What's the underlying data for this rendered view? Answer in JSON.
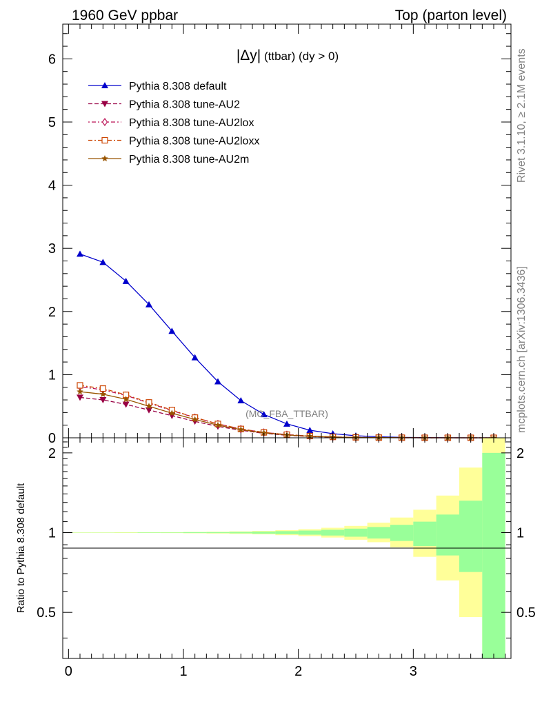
{
  "header": {
    "left": "1960 GeV ppbar",
    "right": "Top (parton level)"
  },
  "side_labels": {
    "rivet": "Rivet 3.1.10, ≥ 2.1M events",
    "mcplots": "mcplots.cern.ch [arXiv:1306.3436]"
  },
  "analysis_tag": "(MC_FBA_TTBAR)",
  "main_title": {
    "var": "|Δy|",
    "rest": " (ttbar) (dy > 0)"
  },
  "chart_data": [
    {
      "type": "line",
      "title": "|Δy| (ttbar) (dy > 0)",
      "xlim": [
        -0.05,
        3.85
      ],
      "ylim": [
        0,
        6.55
      ],
      "x": [
        0.1,
        0.3,
        0.5,
        0.7,
        0.9,
        1.1,
        1.3,
        1.5,
        1.7,
        1.9,
        2.1,
        2.3,
        2.5,
        2.7,
        2.9,
        3.1,
        3.3,
        3.5,
        3.7
      ],
      "yticks": [
        0,
        1,
        2,
        3,
        4,
        5,
        6
      ],
      "ytick_labels": [
        "0",
        "1",
        "2",
        "3",
        "4",
        "5",
        "6"
      ],
      "legend_position": "top-left",
      "series": [
        {
          "name": "Pythia 8.308 default",
          "color": "#0000cc",
          "marker": "triangle-up",
          "dash": "solid",
          "values": [
            2.91,
            2.78,
            2.48,
            2.11,
            1.69,
            1.27,
            0.89,
            0.59,
            0.37,
            0.22,
            0.12,
            0.065,
            0.033,
            0.016,
            0.007,
            0.003,
            0.0012,
            0.0005,
            0.0002
          ]
        },
        {
          "name": "Pythia 8.308 tune-AU2",
          "color": "#990044",
          "marker": "triangle-down",
          "dash": "dashed",
          "values": [
            0.64,
            0.6,
            0.53,
            0.44,
            0.35,
            0.26,
            0.18,
            0.12,
            0.07,
            0.04,
            0.02,
            0.011,
            0.005,
            0.0025,
            0.001,
            0.0005,
            0.0002,
            0.0001,
            4e-05
          ]
        },
        {
          "name": "Pythia 8.308 tune-AU2lox",
          "color": "#bb1155",
          "marker": "diamond-open",
          "dash": "dotdash",
          "values": [
            0.81,
            0.76,
            0.67,
            0.55,
            0.43,
            0.32,
            0.22,
            0.14,
            0.085,
            0.05,
            0.027,
            0.014,
            0.007,
            0.003,
            0.0013,
            0.0006,
            0.0003,
            0.0001,
            5e-05
          ]
        },
        {
          "name": "Pythia 8.308 tune-AU2loxx",
          "color": "#cc4400",
          "marker": "square-open",
          "dash": "dashdot",
          "values": [
            0.83,
            0.78,
            0.68,
            0.56,
            0.44,
            0.32,
            0.22,
            0.14,
            0.086,
            0.05,
            0.028,
            0.014,
            0.007,
            0.003,
            0.0014,
            0.0006,
            0.0003,
            0.0001,
            5e-05
          ]
        },
        {
          "name": "Pythia 8.308 tune-AU2m",
          "color": "#995500",
          "marker": "star",
          "dash": "solid",
          "values": [
            0.73,
            0.69,
            0.61,
            0.5,
            0.39,
            0.29,
            0.2,
            0.13,
            0.078,
            0.045,
            0.024,
            0.012,
            0.006,
            0.003,
            0.0012,
            0.0005,
            0.0002,
            0.0001,
            4e-05
          ]
        }
      ]
    },
    {
      "type": "area",
      "ylabel": "Ratio to Pythia 8.308 default",
      "xlim": [
        -0.05,
        3.85
      ],
      "ylim": [
        0.335,
        2.28
      ],
      "log_y": true,
      "xticks": [
        0,
        1,
        2,
        3
      ],
      "xtick_labels": [
        "0",
        "1",
        "2",
        "3"
      ],
      "yticks": [
        0.5,
        1,
        2
      ],
      "ytick_labels": [
        "0.5",
        "1",
        "2"
      ],
      "reference_line": 1,
      "bins": [
        0,
        0.2,
        0.4,
        0.6,
        0.8,
        1.0,
        1.2,
        1.4,
        1.6,
        1.8,
        2.0,
        2.2,
        2.4,
        2.6,
        2.8,
        3.0,
        3.2,
        3.4,
        3.6,
        3.8
      ],
      "bands": [
        {
          "name": "stat",
          "color": "#99ff99",
          "lo": [
            0.999,
            0.999,
            0.999,
            0.998,
            0.998,
            0.997,
            0.996,
            0.994,
            0.991,
            0.987,
            0.982,
            0.975,
            0.965,
            0.95,
            0.93,
            0.89,
            0.82,
            0.71,
            0.33
          ],
          "hi": [
            1.001,
            1.001,
            1.001,
            1.002,
            1.002,
            1.003,
            1.004,
            1.006,
            1.009,
            1.013,
            1.018,
            1.025,
            1.035,
            1.05,
            1.07,
            1.1,
            1.17,
            1.32,
            2.0
          ]
        },
        {
          "name": "total",
          "color": "#ffff99",
          "lo": [
            0.998,
            0.998,
            0.997,
            0.997,
            0.996,
            0.994,
            0.992,
            0.989,
            0.985,
            0.978,
            0.97,
            0.958,
            0.94,
            0.92,
            0.88,
            0.81,
            0.66,
            0.48,
            0.33
          ],
          "hi": [
            1.002,
            1.002,
            1.003,
            1.003,
            1.004,
            1.006,
            1.008,
            1.011,
            1.015,
            1.022,
            1.03,
            1.043,
            1.06,
            1.09,
            1.14,
            1.22,
            1.38,
            1.76,
            2.3
          ]
        }
      ]
    }
  ]
}
